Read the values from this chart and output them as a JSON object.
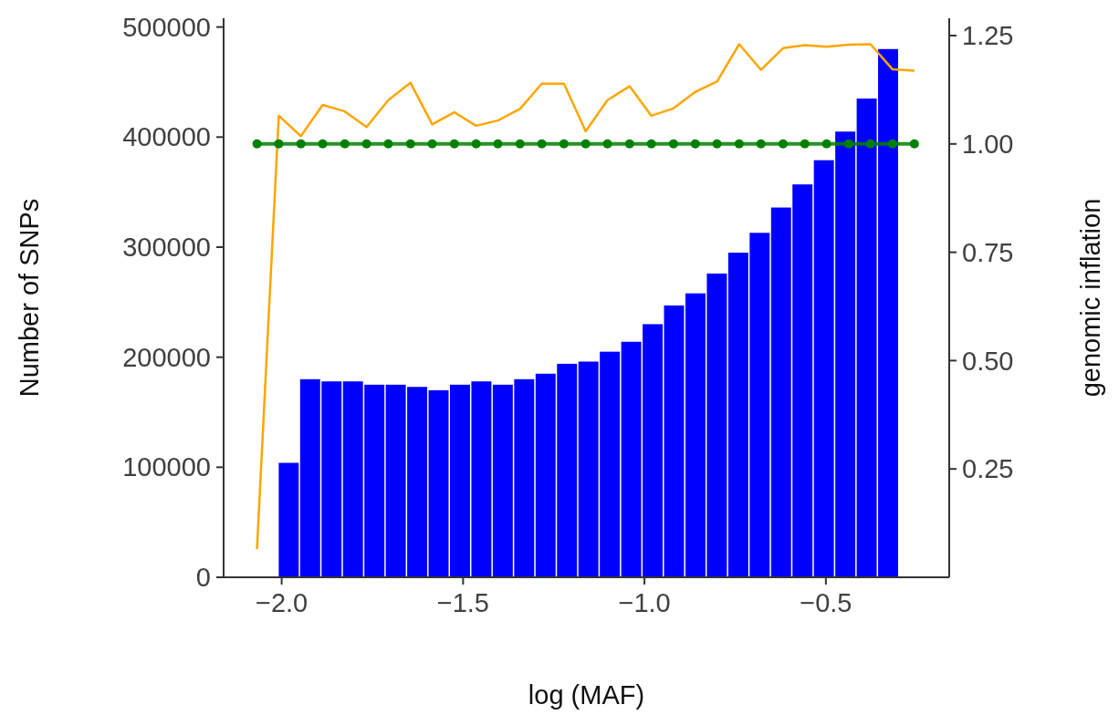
{
  "chart_data": {
    "type": "histogram",
    "xlabel": "log (MAF)",
    "ylabel": "Number of SNPs",
    "y2label": "genomic inflation",
    "xlim": [
      -2.16,
      -0.16
    ],
    "xticks": [
      {
        "value": -2,
        "label": "−2.0"
      },
      {
        "value": -1.5,
        "label": "−1.5"
      },
      {
        "value": -1,
        "label": "−1.0"
      },
      {
        "value": -0.5,
        "label": "−0.5"
      }
    ],
    "ylim": [
      0,
      508000
    ],
    "yticks": [
      0,
      100000,
      200000,
      300000,
      400000,
      500000
    ],
    "y2lim": [
      0,
      1.29
    ],
    "y2ticks": [
      0.25,
      {
        "value": 0.5,
        "label": "0.50"
      },
      0.75,
      {
        "value": 1,
        "label": "1.00"
      },
      1.25
    ],
    "grid": false,
    "series": [
      {
        "color": "#0000ff",
        "bins": [
          -2.01,
          -1.951,
          -1.892,
          -1.833,
          -1.774,
          -1.715,
          -1.656,
          -1.597,
          -1.538,
          -1.479,
          -1.42,
          -1.361,
          -1.302,
          -1.243,
          -1.184,
          -1.125,
          -1.066,
          -1.007,
          -0.948,
          -0.889,
          -0.83,
          -0.771,
          -0.712,
          -0.653,
          -0.594,
          -0.535,
          -0.476,
          -0.417,
          -0.358,
          -0.299
        ],
        "values": [
          104000,
          180000,
          178000,
          178000,
          175000,
          175000,
          173000,
          170000,
          175000,
          178000,
          175000,
          180000,
          185000,
          194000,
          196000,
          205000,
          214000,
          230000,
          247000,
          258000,
          276000,
          295000,
          313000,
          336000,
          357000,
          379000,
          405000,
          435000,
          480000
        ]
      },
      {
        "type": "line",
        "axis": "y2",
        "color": "#ffa500",
        "marker": "none",
        "x": [
          -2.068,
          -2.008,
          -1.947,
          -1.887,
          -1.826,
          -1.766,
          -1.706,
          -1.645,
          -1.585,
          -1.524,
          -1.464,
          -1.404,
          -1.343,
          -1.283,
          -1.222,
          -1.162,
          -1.102,
          -1.041,
          -0.981,
          -0.92,
          -0.86,
          -0.8,
          -0.739,
          -0.679,
          -0.618,
          -0.558,
          -0.498,
          -0.437,
          -0.377,
          -0.316,
          -0.256
        ],
        "values": [
          0.065,
          1.065,
          1.018,
          1.09,
          1.075,
          1.039,
          1.101,
          1.141,
          1.045,
          1.073,
          1.042,
          1.054,
          1.081,
          1.139,
          1.139,
          1.029,
          1.101,
          1.133,
          1.065,
          1.082,
          1.12,
          1.144,
          1.23,
          1.171,
          1.221,
          1.228,
          1.224,
          1.229,
          1.23,
          1.172,
          1.169
        ]
      },
      {
        "type": "line",
        "axis": "y2",
        "color": "#008000",
        "marker": "circle",
        "x": [
          -2.068,
          -2.008,
          -1.947,
          -1.887,
          -1.826,
          -1.766,
          -1.706,
          -1.645,
          -1.585,
          -1.524,
          -1.464,
          -1.404,
          -1.343,
          -1.283,
          -1.222,
          -1.162,
          -1.102,
          -1.041,
          -0.981,
          -0.92,
          -0.86,
          -0.8,
          -0.739,
          -0.679,
          -0.618,
          -0.558,
          -0.498,
          -0.437,
          -0.377,
          -0.316,
          -0.256
        ],
        "values": [
          1,
          1,
          1,
          1,
          1,
          1,
          1,
          1,
          1,
          1,
          1,
          1,
          1,
          1,
          1,
          1,
          1,
          1,
          1,
          1,
          1,
          1,
          1,
          1,
          1,
          1,
          1,
          1,
          1,
          1,
          1
        ]
      }
    ]
  }
}
